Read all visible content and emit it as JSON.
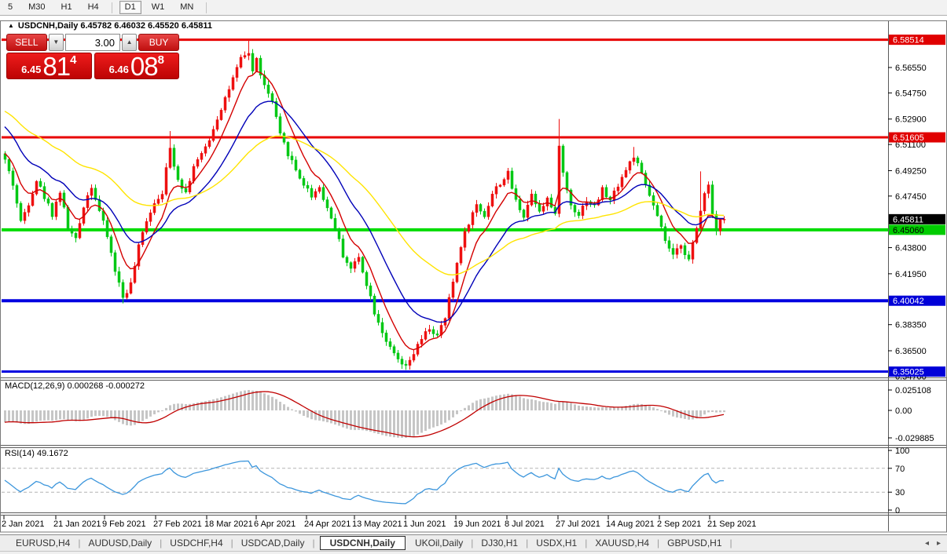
{
  "toolbar": {
    "groups": [
      [
        "5",
        "M30",
        "H1",
        "H4"
      ],
      [
        "D1",
        "W1",
        "MN"
      ]
    ],
    "active": "D1"
  },
  "chart": {
    "title_arrow": "▲",
    "title": "USDCNH,Daily 6.45782 6.46032 6.45520 6.45811"
  },
  "trade_panel": {
    "sell_label": "SELL",
    "buy_label": "BUY",
    "volume": "3.00",
    "volume_down_icon": "▼",
    "volume_up_icon": "▲",
    "sell_price_small": "6.45",
    "sell_price_big": "81",
    "sell_price_sup": "4",
    "buy_price_small": "6.46",
    "buy_price_big": "08",
    "buy_price_sup": "8"
  },
  "indicators": {
    "macd_label": "MACD(12,26,9) 0.000268 -0.000272",
    "rsi_label": "RSI(14) 49.1672"
  },
  "price_axis": {
    "ticks": [
      "6.56550",
      "6.54750",
      "6.52900",
      "6.51100",
      "6.49250",
      "6.47450",
      "6.43800",
      "6.41950",
      "6.38350",
      "6.36500",
      "6.34700"
    ],
    "tick_values": [
      6.5655,
      6.5475,
      6.529,
      6.511,
      6.4925,
      6.4745,
      6.438,
      6.4195,
      6.3835,
      6.365,
      6.347
    ],
    "badges": [
      {
        "label": "6.58514",
        "price": 6.58514,
        "bg": "#E00000",
        "fg": "#FFFFFF"
      },
      {
        "label": "6.51605",
        "price": 6.51605,
        "bg": "#E00000",
        "fg": "#FFFFFF"
      },
      {
        "label": "6.45811",
        "price": 6.45811,
        "bg": "#000000",
        "fg": "#FFFFFF"
      },
      {
        "label": "6.45060",
        "price": 6.4506,
        "bg": "#00CC00",
        "fg": "#000000"
      },
      {
        "label": "6.40042",
        "price": 6.40042,
        "bg": "#0000D8",
        "fg": "#FFFFFF"
      },
      {
        "label": "6.35025",
        "price": 6.35025,
        "bg": "#0000D8",
        "fg": "#FFFFFF"
      }
    ]
  },
  "macd_axis": [
    {
      "label": "0.025108",
      "v": 0.025108
    },
    {
      "label": "0.00",
      "v": 0
    },
    {
      "label": "-0.029885",
      "v": -0.029885
    }
  ],
  "rsi_axis": [
    {
      "label": "100",
      "v": 100
    },
    {
      "label": "70",
      "v": 70
    },
    {
      "label": "30",
      "v": 30
    },
    {
      "label": "0",
      "v": 0
    }
  ],
  "date_axis": [
    "2 Jan 2021",
    "21 Jan 2021",
    "9 Feb 2021",
    "27 Feb 2021",
    "18 Mar 2021",
    "6 Apr 2021",
    "24 Apr 2021",
    "13 May 2021",
    "1 Jun 2021",
    "19 Jun 2021",
    "8 Jul 2021",
    "27 Jul 2021",
    "14 Aug 2021",
    "2 Sep 2021",
    "21 Sep 2021"
  ],
  "tabs": {
    "items": [
      "EURUSD,H4",
      "AUDUSD,Daily",
      "USDCHF,H4",
      "USDCAD,Daily",
      "USDCNH,Daily",
      "UKOil,Daily",
      "DJ30,H1",
      "USDX,H1",
      "XAUUSD,H4",
      "GBPUSD,H1"
    ],
    "active": "USDCNH,Daily",
    "scroll_left_icon": "◂",
    "scroll_right_icon": "▸"
  },
  "chart_data": {
    "type": "candlestick",
    "symbol": "USDCNH",
    "timeframe": "Daily",
    "color_convention": "red = up candle, green = down candle (CN scheme)",
    "bull_color": "#EE1010",
    "bear_color": "#00C814",
    "ohlc_current": {
      "open": 6.45782,
      "high": 6.46032,
      "low": 6.4552,
      "close": 6.45811
    },
    "y_range": [
      6.347,
      6.58514
    ],
    "bars_total": 184,
    "close_waypoints": [
      [
        0,
        6.5
      ],
      [
        2,
        6.483
      ],
      [
        4,
        6.456
      ],
      [
        6,
        6.47
      ],
      [
        8,
        6.486
      ],
      [
        10,
        6.474
      ],
      [
        12,
        6.462
      ],
      [
        14,
        6.478
      ],
      [
        16,
        6.452
      ],
      [
        18,
        6.443
      ],
      [
        20,
        6.468
      ],
      [
        22,
        6.482
      ],
      [
        24,
        6.464
      ],
      [
        26,
        6.446
      ],
      [
        28,
        6.422
      ],
      [
        30,
        6.403
      ],
      [
        32,
        6.412
      ],
      [
        34,
        6.438
      ],
      [
        36,
        6.458
      ],
      [
        38,
        6.47
      ],
      [
        40,
        6.478
      ],
      [
        42,
        6.508
      ],
      [
        44,
        6.487
      ],
      [
        46,
        6.477
      ],
      [
        48,
        6.496
      ],
      [
        50,
        6.503
      ],
      [
        52,
        6.515
      ],
      [
        54,
        6.53
      ],
      [
        56,
        6.544
      ],
      [
        58,
        6.557
      ],
      [
        60,
        6.571
      ],
      [
        62,
        6.576
      ],
      [
        63,
        6.563
      ],
      [
        64,
        6.571
      ],
      [
        66,
        6.552
      ],
      [
        68,
        6.541
      ],
      [
        70,
        6.517
      ],
      [
        72,
        6.505
      ],
      [
        74,
        6.493
      ],
      [
        76,
        6.483
      ],
      [
        78,
        6.475
      ],
      [
        80,
        6.481
      ],
      [
        82,
        6.466
      ],
      [
        84,
        6.452
      ],
      [
        86,
        6.433
      ],
      [
        88,
        6.423
      ],
      [
        90,
        6.431
      ],
      [
        92,
        6.413
      ],
      [
        94,
        6.393
      ],
      [
        96,
        6.379
      ],
      [
        98,
        6.366
      ],
      [
        100,
        6.358
      ],
      [
        102,
        6.3525
      ],
      [
        104,
        6.363
      ],
      [
        106,
        6.373
      ],
      [
        108,
        6.381
      ],
      [
        110,
        6.375
      ],
      [
        112,
        6.388
      ],
      [
        114,
        6.414
      ],
      [
        116,
        6.44
      ],
      [
        118,
        6.456
      ],
      [
        120,
        6.468
      ],
      [
        122,
        6.461
      ],
      [
        124,
        6.476
      ],
      [
        126,
        6.484
      ],
      [
        128,
        6.49
      ],
      [
        130,
        6.471
      ],
      [
        132,
        6.461
      ],
      [
        134,
        6.476
      ],
      [
        136,
        6.465
      ],
      [
        138,
        6.473
      ],
      [
        140,
        6.46
      ],
      [
        141,
        6.512
      ],
      [
        142,
        6.49
      ],
      [
        144,
        6.468
      ],
      [
        146,
        6.462
      ],
      [
        148,
        6.472
      ],
      [
        150,
        6.467
      ],
      [
        152,
        6.479
      ],
      [
        154,
        6.471
      ],
      [
        156,
        6.483
      ],
      [
        158,
        6.493
      ],
      [
        160,
        6.503
      ],
      [
        162,
        6.489
      ],
      [
        164,
        6.475
      ],
      [
        166,
        6.459
      ],
      [
        168,
        6.443
      ],
      [
        170,
        6.431
      ],
      [
        172,
        6.441
      ],
      [
        174,
        6.429
      ],
      [
        176,
        6.451
      ],
      [
        178,
        6.478
      ],
      [
        179,
        6.483
      ],
      [
        180,
        6.462
      ],
      [
        181,
        6.452
      ],
      [
        182,
        6.457
      ],
      [
        183,
        6.45811
      ]
    ],
    "spikes": [
      {
        "bar": 62,
        "type": "high",
        "price": 6.58514
      },
      {
        "bar": 42,
        "type": "high",
        "price": 6.5205
      },
      {
        "bar": 102,
        "type": "low",
        "price": 6.35146
      },
      {
        "bar": 141,
        "type": "high",
        "price": 6.52903
      },
      {
        "bar": 160,
        "type": "high",
        "price": 6.5093
      },
      {
        "bar": 30,
        "type": "low",
        "price": 6.39855
      },
      {
        "bar": 177,
        "type": "high",
        "price": 6.492
      }
    ],
    "levels": [
      {
        "price": 6.58514,
        "color": "#E80000",
        "width": 3
      },
      {
        "price": 6.51605,
        "color": "#E80000",
        "width": 3
      },
      {
        "price": 6.4506,
        "color": "#00DC00",
        "width": 4
      },
      {
        "price": 6.40042,
        "color": "#0000E0",
        "width": 4
      },
      {
        "price": 6.35025,
        "color": "#0000E0",
        "width": 3
      }
    ],
    "moving_averages": [
      {
        "period": 8,
        "color": "#D40000",
        "seed": 6.506
      },
      {
        "period": 20,
        "color": "#0000B8",
        "seed": 6.526
      },
      {
        "period": 48,
        "color": "#FFE400",
        "seed": 6.536
      }
    ],
    "macd": {
      "fast": 12,
      "slow": 26,
      "signal": 9,
      "current_main": 0.000268,
      "current_signal": -0.000272,
      "hist_color": "#C6C6C6",
      "signal_color": "#C00000",
      "axis_max": 0.025108,
      "axis_min": -0.029885
    },
    "rsi": {
      "period": 14,
      "current": 49.1672,
      "color": "#3C96DC",
      "levels": [
        30,
        70
      ]
    }
  }
}
